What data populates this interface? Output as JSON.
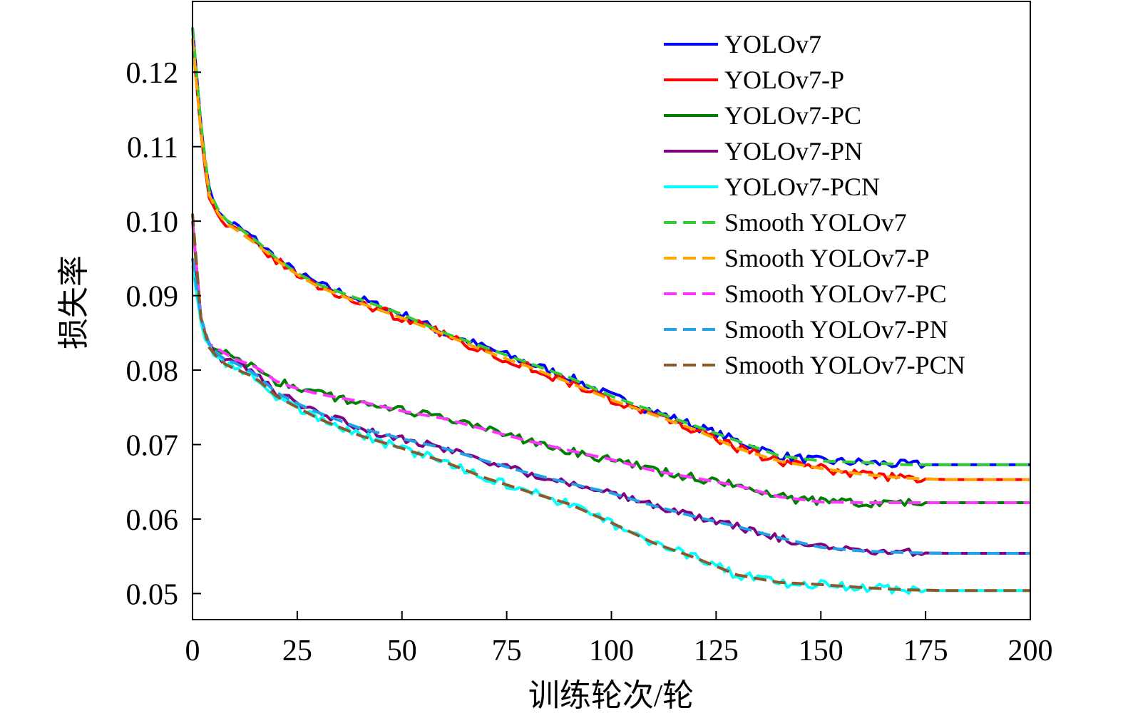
{
  "chart_data": {
    "type": "line",
    "title": "",
    "xlabel": "训练轮次/轮",
    "ylabel": "损失率",
    "xlim": [
      0,
      200
    ],
    "ylim": [
      0.0465,
      0.1295
    ],
    "xticks": [
      0,
      25,
      50,
      75,
      100,
      125,
      150,
      175,
      200
    ],
    "yticks": [
      0.05,
      0.06,
      0.07,
      0.08,
      0.09,
      0.1,
      0.11,
      0.12
    ],
    "grid": false,
    "legend_position": "top-right",
    "series": [
      {
        "name": "YOLOv7",
        "style": "solid",
        "color": "#0000ff",
        "noise": 0.0006,
        "points": [
          [
            0,
            0.126
          ],
          [
            2,
            0.113
          ],
          [
            4,
            0.104
          ],
          [
            7,
            0.1005
          ],
          [
            10,
            0.0995
          ],
          [
            15,
            0.0975
          ],
          [
            20,
            0.095
          ],
          [
            25,
            0.093
          ],
          [
            30,
            0.0915
          ],
          [
            40,
            0.0895
          ],
          [
            50,
            0.0875
          ],
          [
            60,
            0.085
          ],
          [
            70,
            0.083
          ],
          [
            80,
            0.081
          ],
          [
            90,
            0.079
          ],
          [
            100,
            0.0765
          ],
          [
            110,
            0.0745
          ],
          [
            120,
            0.0725
          ],
          [
            130,
            0.0705
          ],
          [
            140,
            0.0685
          ],
          [
            150,
            0.0678
          ],
          [
            160,
            0.0676
          ],
          [
            170,
            0.0673
          ],
          [
            180,
            0.0673
          ],
          [
            190,
            0.0673
          ],
          [
            200,
            0.0673
          ]
        ]
      },
      {
        "name": "YOLOv7-P",
        "style": "solid",
        "color": "#ff0000",
        "noise": 0.0006,
        "points": [
          [
            0,
            0.1245
          ],
          [
            2,
            0.112
          ],
          [
            4,
            0.1035
          ],
          [
            7,
            0.1
          ],
          [
            10,
            0.099
          ],
          [
            15,
            0.097
          ],
          [
            20,
            0.0948
          ],
          [
            25,
            0.0928
          ],
          [
            30,
            0.0912
          ],
          [
            40,
            0.089
          ],
          [
            50,
            0.087
          ],
          [
            60,
            0.0848
          ],
          [
            70,
            0.0825
          ],
          [
            80,
            0.0805
          ],
          [
            90,
            0.0783
          ],
          [
            100,
            0.076
          ],
          [
            110,
            0.074
          ],
          [
            120,
            0.072
          ],
          [
            130,
            0.0695
          ],
          [
            140,
            0.0678
          ],
          [
            150,
            0.0668
          ],
          [
            160,
            0.066
          ],
          [
            170,
            0.0655
          ],
          [
            180,
            0.0653
          ],
          [
            190,
            0.0653
          ],
          [
            200,
            0.0653
          ]
        ]
      },
      {
        "name": "YOLOv7-PC",
        "style": "solid",
        "color": "#008000",
        "noise": 0.0006,
        "points": [
          [
            0,
            0.1
          ],
          [
            2,
            0.087
          ],
          [
            4,
            0.0835
          ],
          [
            7,
            0.0825
          ],
          [
            10,
            0.0815
          ],
          [
            15,
            0.0805
          ],
          [
            20,
            0.0785
          ],
          [
            25,
            0.0775
          ],
          [
            30,
            0.0768
          ],
          [
            40,
            0.0758
          ],
          [
            50,
            0.0745
          ],
          [
            60,
            0.0735
          ],
          [
            70,
            0.072
          ],
          [
            80,
            0.0705
          ],
          [
            90,
            0.0692
          ],
          [
            100,
            0.068
          ],
          [
            110,
            0.0665
          ],
          [
            120,
            0.0655
          ],
          [
            130,
            0.0645
          ],
          [
            140,
            0.063
          ],
          [
            150,
            0.0623
          ],
          [
            160,
            0.0622
          ],
          [
            170,
            0.0622
          ],
          [
            180,
            0.0622
          ],
          [
            190,
            0.0622
          ],
          [
            200,
            0.0622
          ]
        ]
      },
      {
        "name": "YOLOv7-PN",
        "style": "solid",
        "color": "#800080",
        "noise": 0.0005,
        "points": [
          [
            0,
            0.095
          ],
          [
            2,
            0.087
          ],
          [
            4,
            0.0835
          ],
          [
            7,
            0.0815
          ],
          [
            10,
            0.081
          ],
          [
            15,
            0.0795
          ],
          [
            20,
            0.077
          ],
          [
            25,
            0.0755
          ],
          [
            30,
            0.0743
          ],
          [
            40,
            0.0722
          ],
          [
            50,
            0.0708
          ],
          [
            60,
            0.0695
          ],
          [
            70,
            0.0678
          ],
          [
            80,
            0.0662
          ],
          [
            90,
            0.0648
          ],
          [
            100,
            0.0635
          ],
          [
            110,
            0.0618
          ],
          [
            120,
            0.0603
          ],
          [
            130,
            0.059
          ],
          [
            140,
            0.0575
          ],
          [
            150,
            0.0562
          ],
          [
            160,
            0.0557
          ],
          [
            170,
            0.0555
          ],
          [
            180,
            0.0554
          ],
          [
            190,
            0.0554
          ],
          [
            200,
            0.0554
          ]
        ]
      },
      {
        "name": "YOLOv7-PCN",
        "style": "solid",
        "color": "#00ffff",
        "noise": 0.0006,
        "points": [
          [
            0,
            0.094
          ],
          [
            2,
            0.0865
          ],
          [
            4,
            0.083
          ],
          [
            7,
            0.081
          ],
          [
            10,
            0.0802
          ],
          [
            15,
            0.079
          ],
          [
            20,
            0.0765
          ],
          [
            25,
            0.075
          ],
          [
            30,
            0.0735
          ],
          [
            40,
            0.0712
          ],
          [
            50,
            0.0695
          ],
          [
            60,
            0.0677
          ],
          [
            70,
            0.0655
          ],
          [
            80,
            0.0637
          ],
          [
            90,
            0.062
          ],
          [
            100,
            0.0595
          ],
          [
            110,
            0.0568
          ],
          [
            120,
            0.0548
          ],
          [
            130,
            0.0525
          ],
          [
            140,
            0.0515
          ],
          [
            150,
            0.0512
          ],
          [
            160,
            0.0508
          ],
          [
            170,
            0.0505
          ],
          [
            180,
            0.0504
          ],
          [
            190,
            0.0504
          ],
          [
            200,
            0.0504
          ]
        ]
      },
      {
        "name": "Smooth YOLOv7",
        "style": "dashed",
        "color": "#33cc33",
        "noise": 0,
        "points": [
          [
            0,
            0.126
          ],
          [
            2,
            0.113
          ],
          [
            4,
            0.104
          ],
          [
            7,
            0.1005
          ],
          [
            10,
            0.0995
          ],
          [
            15,
            0.0975
          ],
          [
            20,
            0.095
          ],
          [
            25,
            0.093
          ],
          [
            30,
            0.0915
          ],
          [
            40,
            0.0895
          ],
          [
            50,
            0.0875
          ],
          [
            60,
            0.085
          ],
          [
            70,
            0.083
          ],
          [
            80,
            0.081
          ],
          [
            90,
            0.079
          ],
          [
            100,
            0.0765
          ],
          [
            110,
            0.0745
          ],
          [
            120,
            0.0725
          ],
          [
            130,
            0.0705
          ],
          [
            140,
            0.0685
          ],
          [
            150,
            0.0678
          ],
          [
            160,
            0.0676
          ],
          [
            170,
            0.0673
          ],
          [
            180,
            0.0673
          ],
          [
            190,
            0.0673
          ],
          [
            200,
            0.0673
          ]
        ]
      },
      {
        "name": "Smooth YOLOv7-P",
        "style": "dashed",
        "color": "#ffa500",
        "noise": 0,
        "points": [
          [
            0,
            0.1245
          ],
          [
            2,
            0.112
          ],
          [
            4,
            0.1035
          ],
          [
            7,
            0.1
          ],
          [
            10,
            0.099
          ],
          [
            15,
            0.097
          ],
          [
            20,
            0.0948
          ],
          [
            25,
            0.0928
          ],
          [
            30,
            0.0912
          ],
          [
            40,
            0.089
          ],
          [
            50,
            0.087
          ],
          [
            60,
            0.0848
          ],
          [
            70,
            0.0825
          ],
          [
            80,
            0.0805
          ],
          [
            90,
            0.0783
          ],
          [
            100,
            0.076
          ],
          [
            110,
            0.074
          ],
          [
            120,
            0.072
          ],
          [
            130,
            0.0695
          ],
          [
            140,
            0.0678
          ],
          [
            150,
            0.0668
          ],
          [
            160,
            0.066
          ],
          [
            170,
            0.0655
          ],
          [
            180,
            0.0653
          ],
          [
            190,
            0.0653
          ],
          [
            200,
            0.0653
          ]
        ]
      },
      {
        "name": "Smooth YOLOv7-PC",
        "style": "dashed",
        "color": "#ff33ff",
        "noise": 0,
        "points": [
          [
            0,
            0.1
          ],
          [
            2,
            0.087
          ],
          [
            4,
            0.0835
          ],
          [
            7,
            0.0825
          ],
          [
            10,
            0.0815
          ],
          [
            15,
            0.0805
          ],
          [
            20,
            0.0785
          ],
          [
            25,
            0.0775
          ],
          [
            30,
            0.0768
          ],
          [
            40,
            0.0758
          ],
          [
            50,
            0.0745
          ],
          [
            60,
            0.0735
          ],
          [
            70,
            0.072
          ],
          [
            80,
            0.0705
          ],
          [
            90,
            0.0692
          ],
          [
            100,
            0.068
          ],
          [
            110,
            0.0665
          ],
          [
            120,
            0.0655
          ],
          [
            130,
            0.0645
          ],
          [
            140,
            0.063
          ],
          [
            150,
            0.0623
          ],
          [
            160,
            0.0622
          ],
          [
            170,
            0.0622
          ],
          [
            180,
            0.0622
          ],
          [
            190,
            0.0622
          ],
          [
            200,
            0.0622
          ]
        ]
      },
      {
        "name": "Smooth YOLOv7-PN",
        "style": "dashed",
        "color": "#1fa3e6",
        "noise": 0,
        "points": [
          [
            0,
            0.095
          ],
          [
            2,
            0.087
          ],
          [
            4,
            0.0835
          ],
          [
            7,
            0.0815
          ],
          [
            10,
            0.081
          ],
          [
            15,
            0.0795
          ],
          [
            20,
            0.077
          ],
          [
            25,
            0.0755
          ],
          [
            30,
            0.0743
          ],
          [
            40,
            0.0722
          ],
          [
            50,
            0.0708
          ],
          [
            60,
            0.0695
          ],
          [
            70,
            0.0678
          ],
          [
            80,
            0.0662
          ],
          [
            90,
            0.0648
          ],
          [
            100,
            0.0635
          ],
          [
            110,
            0.0618
          ],
          [
            120,
            0.0603
          ],
          [
            130,
            0.059
          ],
          [
            140,
            0.0575
          ],
          [
            150,
            0.0562
          ],
          [
            160,
            0.0557
          ],
          [
            170,
            0.0555
          ],
          [
            180,
            0.0554
          ],
          [
            190,
            0.0554
          ],
          [
            200,
            0.0554
          ]
        ]
      },
      {
        "name": "Smooth YOLOv7-PCN",
        "style": "dashed",
        "color": "#8b5a2b",
        "noise": 0,
        "points": [
          [
            0,
            0.101
          ],
          [
            2,
            0.087
          ],
          [
            4,
            0.083
          ],
          [
            7,
            0.081
          ],
          [
            10,
            0.0802
          ],
          [
            15,
            0.079
          ],
          [
            20,
            0.0765
          ],
          [
            25,
            0.075
          ],
          [
            30,
            0.0735
          ],
          [
            40,
            0.0712
          ],
          [
            50,
            0.0695
          ],
          [
            60,
            0.0677
          ],
          [
            70,
            0.0655
          ],
          [
            80,
            0.0637
          ],
          [
            90,
            0.062
          ],
          [
            100,
            0.0595
          ],
          [
            110,
            0.0568
          ],
          [
            120,
            0.0548
          ],
          [
            130,
            0.0525
          ],
          [
            140,
            0.0515
          ],
          [
            150,
            0.0512
          ],
          [
            160,
            0.0508
          ],
          [
            170,
            0.0505
          ],
          [
            180,
            0.0504
          ],
          [
            190,
            0.0504
          ],
          [
            200,
            0.0504
          ]
        ]
      }
    ]
  }
}
